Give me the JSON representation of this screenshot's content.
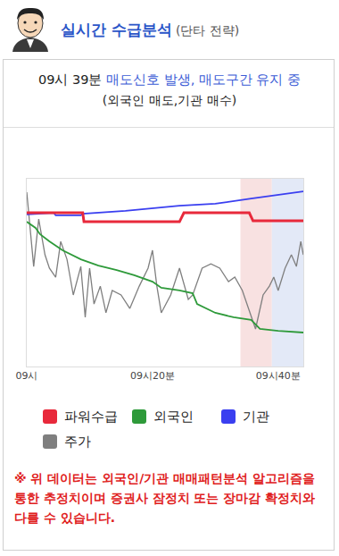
{
  "header": {
    "title": "실시간 수급분석",
    "subtitle": "(단타 전략)"
  },
  "signal": {
    "time": "09시 39분",
    "text": "매도신호 발생, 매도구간 유지 중",
    "detail": "(외국인 매도,기관 매수)"
  },
  "chart_data": {
    "type": "line",
    "xlim": [
      0,
      44
    ],
    "xticks": [
      {
        "value": 0,
        "label": "09시"
      },
      {
        "value": 20,
        "label": "09시20분"
      },
      {
        "value": 40,
        "label": "09시40분"
      }
    ],
    "ylim": [
      0,
      100
    ],
    "tick_labels": "x",
    "grid": false,
    "zones": [
      {
        "start": 34,
        "end": 39,
        "color": "#f8e1e1"
      },
      {
        "start": 39,
        "end": 44,
        "color": "#e3e9f7"
      }
    ],
    "series": [
      {
        "name": "파워수급",
        "color": "#e8293b",
        "x": [
          0,
          8.9,
          9.1,
          24.3,
          25,
          35.4,
          36,
          44
        ],
        "values": [
          81.9,
          81.9,
          77.1,
          77.1,
          81.9,
          81.9,
          77.6,
          77.6
        ]
      },
      {
        "name": "외국인",
        "color": "#2e9a3a",
        "x": [
          0,
          1.4,
          2.1,
          3.6,
          5.7,
          8.6,
          11.4,
          14.3,
          17.1,
          20,
          21.4,
          24.3,
          26.4,
          27.1,
          30,
          32.9,
          35.7,
          36,
          37.1,
          40,
          44
        ],
        "values": [
          77.1,
          73.8,
          70.5,
          66.7,
          61.9,
          57.1,
          53.8,
          51.4,
          48.6,
          45.2,
          41.9,
          40.5,
          39,
          33.3,
          28.6,
          26.2,
          24.8,
          23.8,
          20,
          19,
          18.1
        ]
      },
      {
        "name": "기관",
        "color": "#3a3ff0",
        "x": [
          0,
          4.3,
          4.6,
          8.6,
          8.9,
          15.7,
          24.3,
          30,
          35.7,
          40,
          44
        ],
        "values": [
          81,
          81.9,
          80.5,
          80.5,
          81.4,
          82.9,
          85.7,
          86.7,
          89.5,
          91.4,
          93.3
        ]
      },
      {
        "name": "주가",
        "color": "#7f7f7f",
        "x": [
          0,
          1.1,
          1.9,
          2.9,
          3.6,
          4.6,
          5.4,
          6.4,
          7.4,
          8.6,
          9.3,
          10,
          10.7,
          11.7,
          12.6,
          13.6,
          15,
          16.4,
          17.9,
          19.3,
          20,
          20.7,
          21.4,
          22.9,
          24.3,
          25.7,
          26.4,
          27.9,
          29.3,
          30.7,
          32.1,
          33.1,
          34.3,
          35,
          35.7,
          36.4,
          37.6,
          38.6,
          39.3,
          40,
          41.1,
          42.1,
          42.9,
          43.6,
          44
        ],
        "values": [
          92.8,
          53.3,
          78.5,
          59.5,
          52.4,
          47.6,
          66.6,
          57.1,
          38.1,
          53.3,
          26.2,
          52.4,
          33.3,
          42.8,
          28.6,
          40.5,
          38.1,
          30.9,
          42.8,
          52.4,
          61.9,
          42.8,
          28.6,
          38.1,
          52.4,
          35.7,
          38.1,
          52.4,
          54.7,
          52.4,
          45.2,
          47.6,
          40.5,
          33.3,
          26.2,
          20,
          38.1,
          42.8,
          47.6,
          40.5,
          52.4,
          59.5,
          53.3,
          66.6,
          59.5
        ]
      }
    ]
  },
  "note": "※ 위 데이터는 외국인/기관 매매패턴분석 알고리즘을 통한 추정치이며 증권사 잠정치 또는 장마감 확정치와 다를 수 있습니다."
}
